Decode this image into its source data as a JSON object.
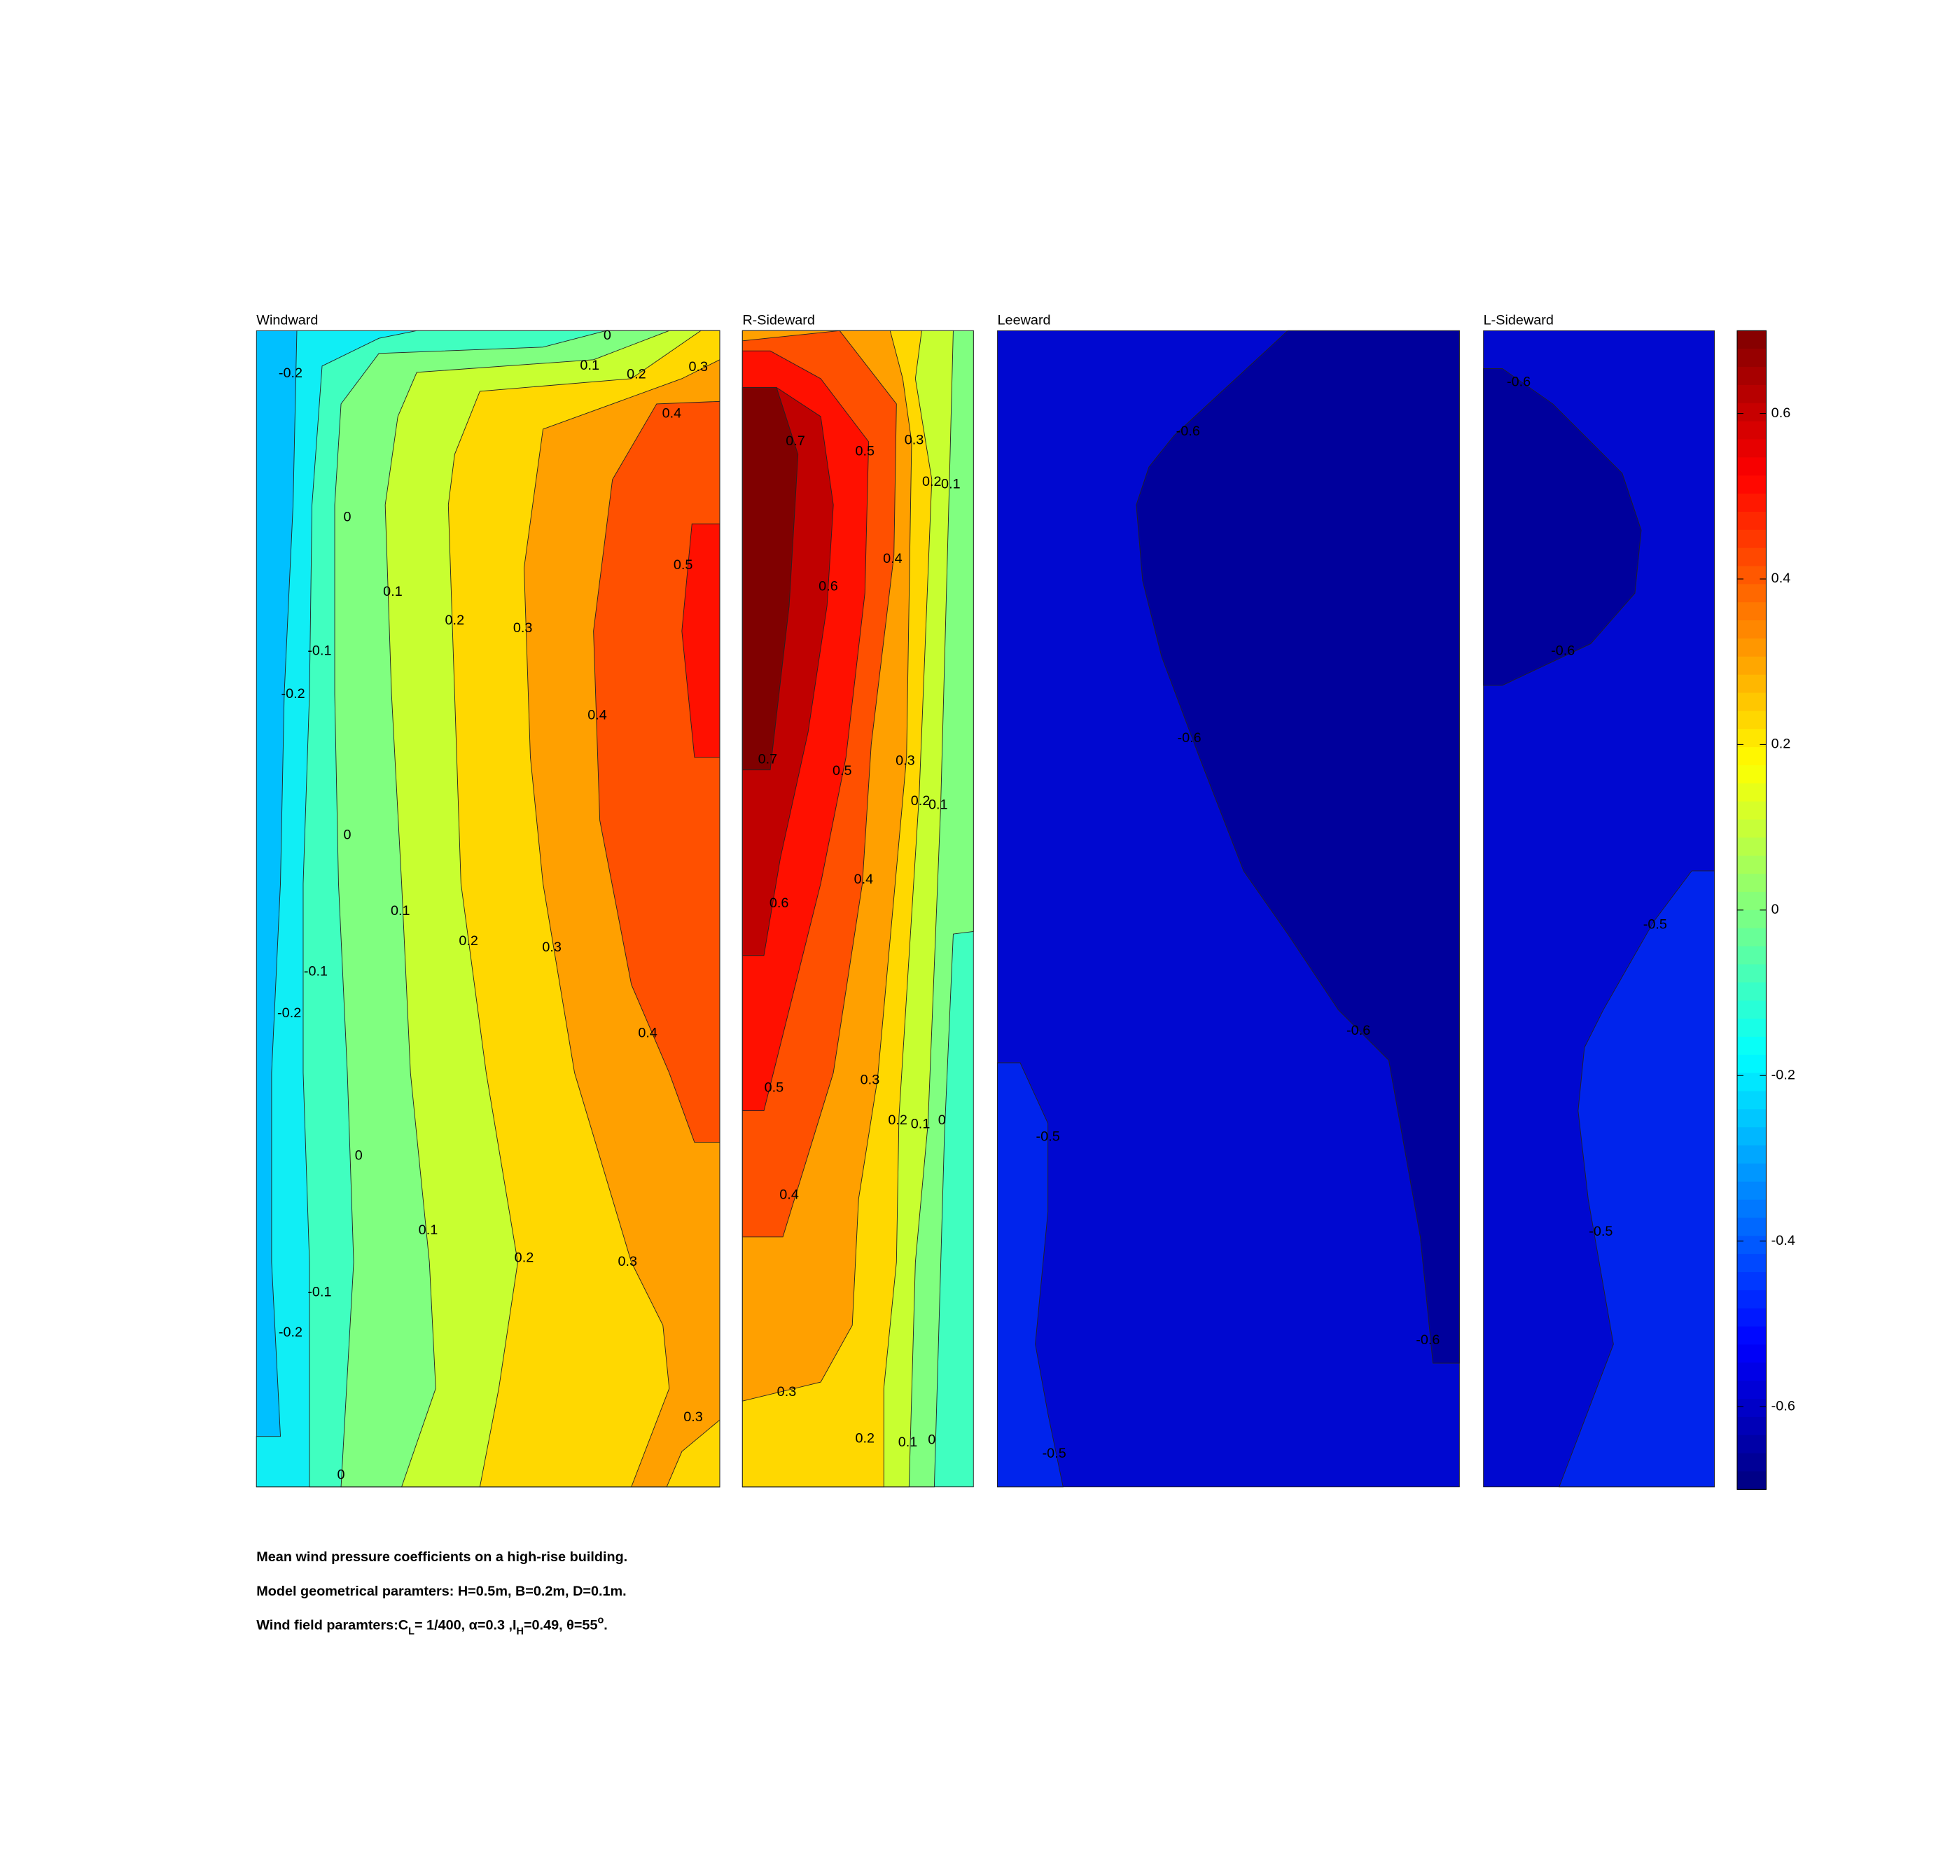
{
  "chart_data": [
    {
      "type": "contour",
      "title": "Windward",
      "contour_labels": [
        -0.2,
        0,
        0.1,
        0.2,
        0.3,
        0.4,
        0,
        0.5,
        0.1,
        0.2,
        0.3,
        -0.1,
        -0.2,
        0.4,
        0,
        0.1,
        0.2,
        0.3,
        -0.1,
        -0.2,
        0.4,
        0,
        0.1,
        0.2,
        0.3,
        -0.1,
        -0.2,
        0.3,
        0
      ]
    },
    {
      "type": "contour",
      "title": "R-Sideward",
      "contour_labels": [
        0.7,
        0.5,
        0.3,
        0.2,
        0.1,
        0.4,
        0.6,
        0.7,
        0.5,
        0.3,
        0.2,
        0.1,
        0.4,
        0.6,
        0.5,
        0.3,
        0.2,
        0.1,
        0,
        0.4,
        0.3,
        0.2,
        0.1,
        0
      ]
    },
    {
      "type": "contour",
      "title": "Leeward",
      "contour_labels": [
        -0.6,
        -0.6,
        -0.6,
        -0.5,
        -0.6,
        -0.5
      ]
    },
    {
      "type": "contour",
      "title": "L-Sideward",
      "contour_labels": [
        -0.6,
        -0.6,
        -0.5,
        -0.5
      ]
    }
  ],
  "colorbar": {
    "ylim": [
      -0.7,
      0.7
    ],
    "yticks": [
      0.6,
      0.4,
      0.2,
      0,
      -0.2,
      -0.4,
      -0.6
    ]
  },
  "notes": {
    "line1": "Mean wind pressure coefficients on a high-rise building.",
    "line2": "Model geometrical paramters: H=0.5m, B=0.2m, D=0.1m.",
    "line3": [
      "Wind field paramters:C",
      "L",
      "= 1/400, α=0.3 ,I",
      "H",
      "=0.49, θ=55",
      "o",
      "."
    ]
  }
}
